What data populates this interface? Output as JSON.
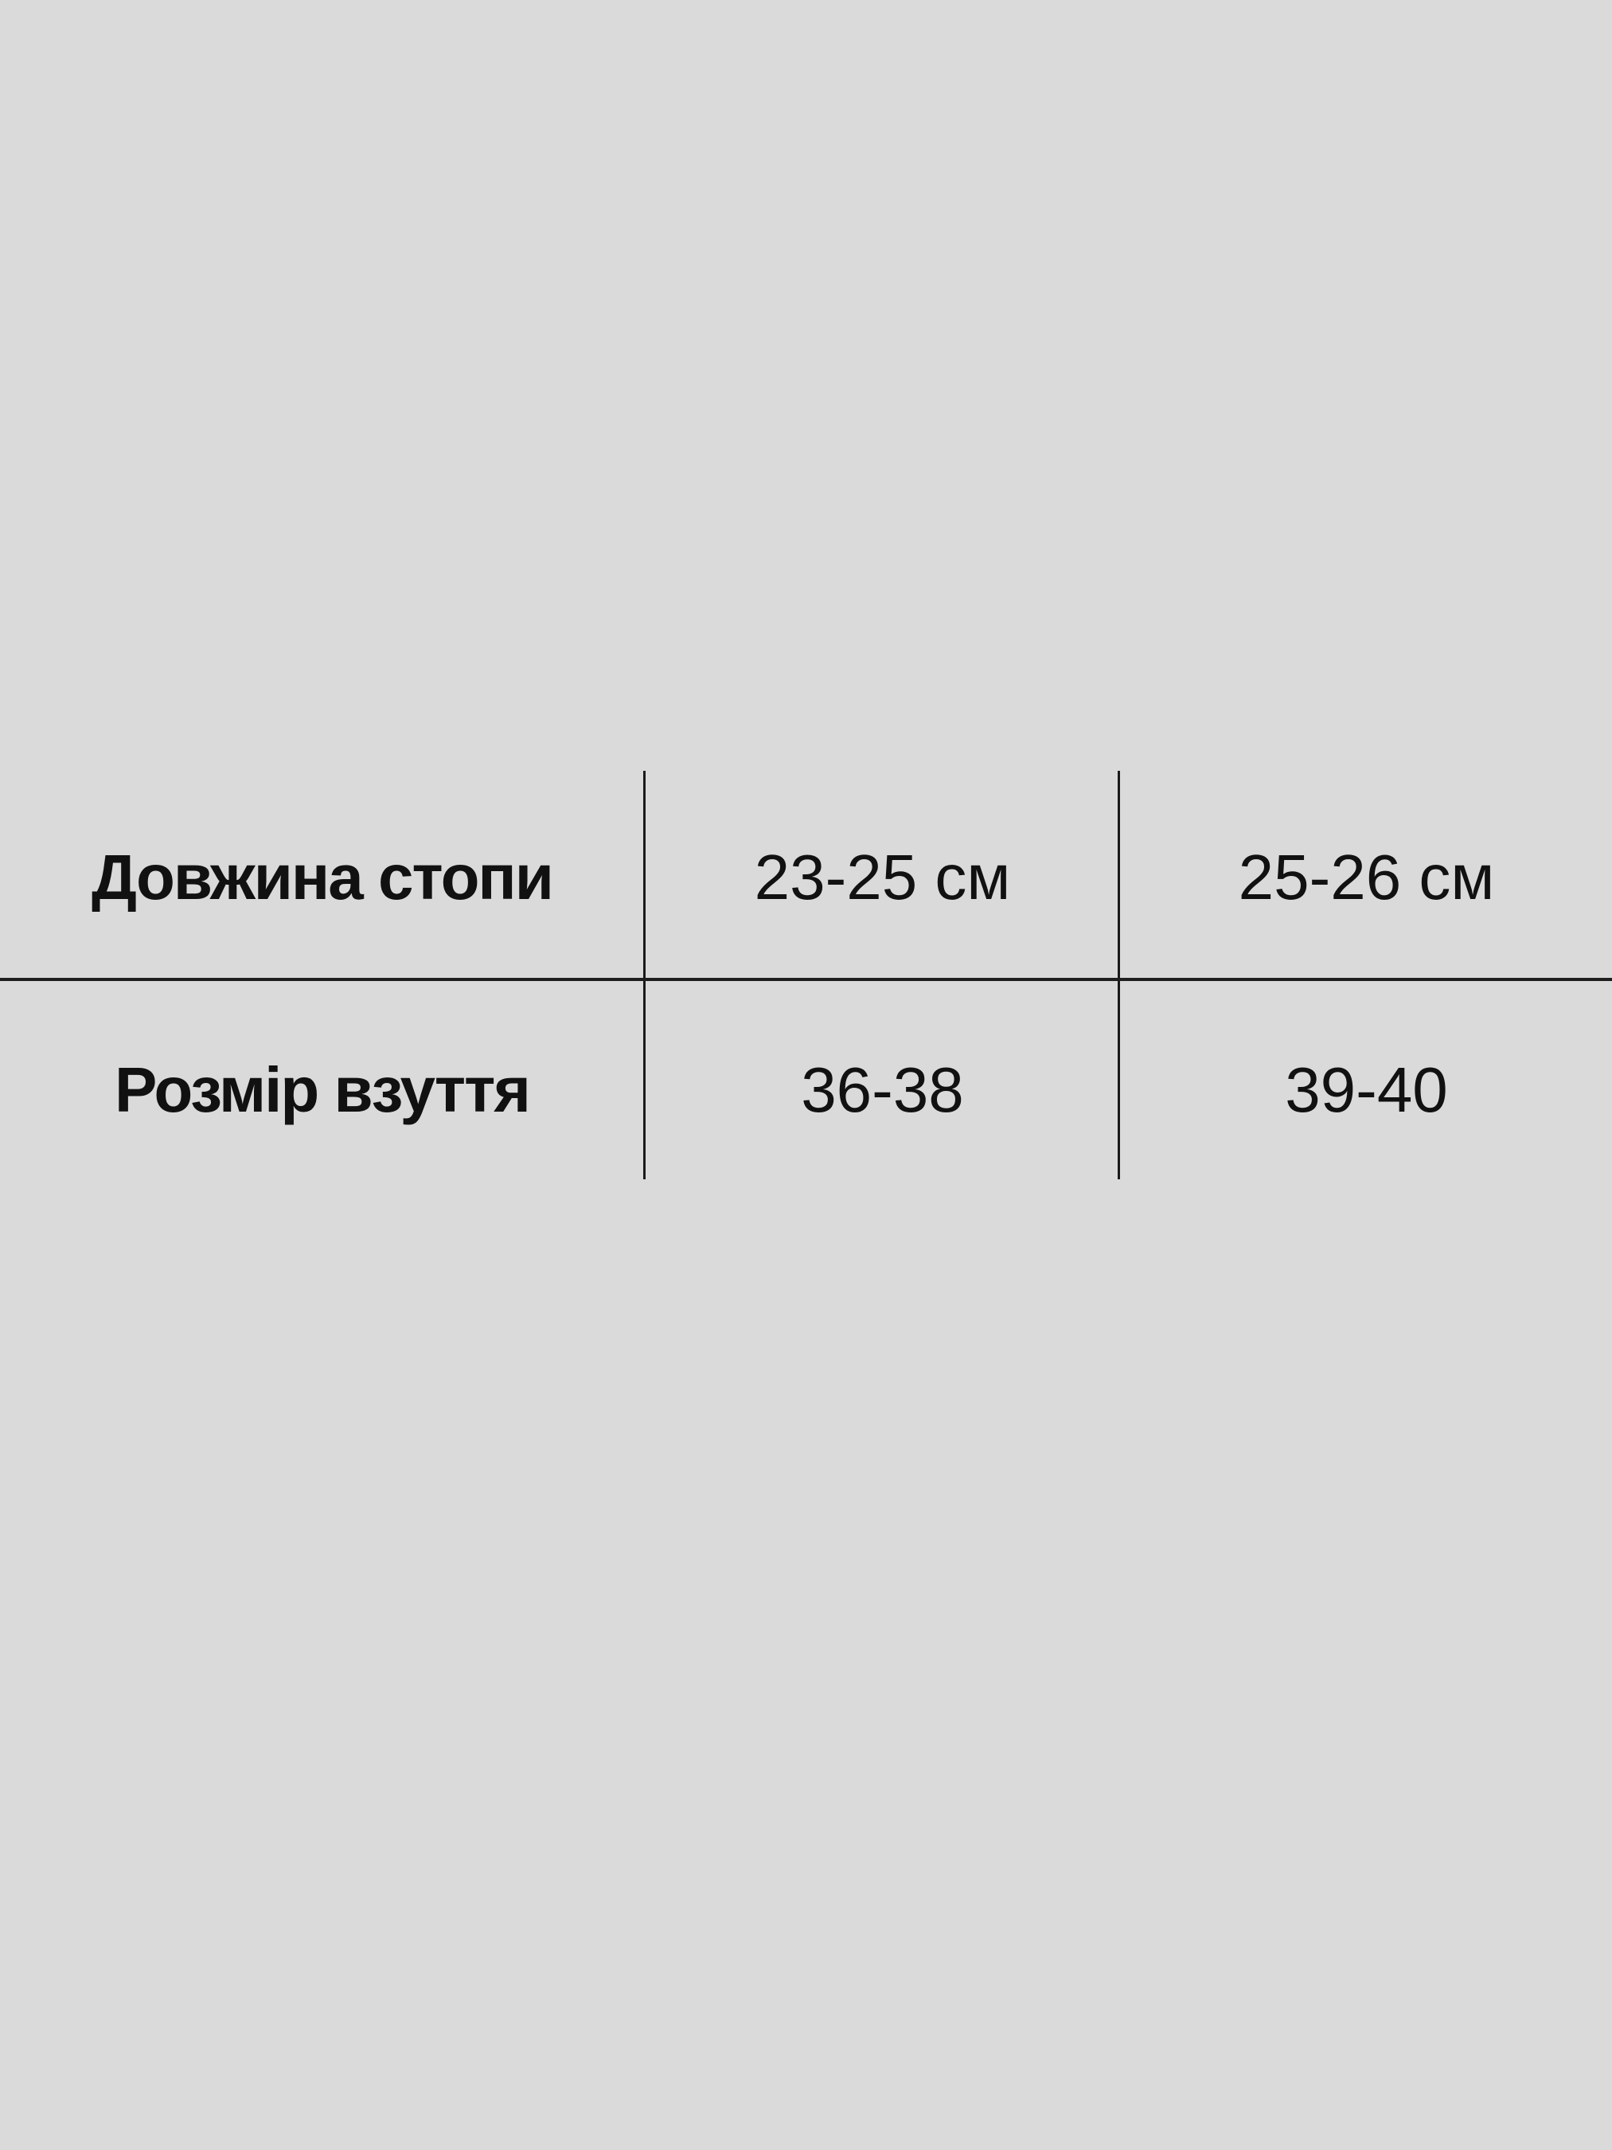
{
  "table": {
    "rows": [
      {
        "label": "Довжина стопи",
        "values": [
          "23-25 см",
          "25-26 см"
        ]
      },
      {
        "label": "Розмір взуття",
        "values": [
          "36-38",
          "39-40"
        ]
      }
    ]
  },
  "colors": {
    "background": "#dadada",
    "text": "#111111",
    "lines": "#1a1a1a"
  }
}
